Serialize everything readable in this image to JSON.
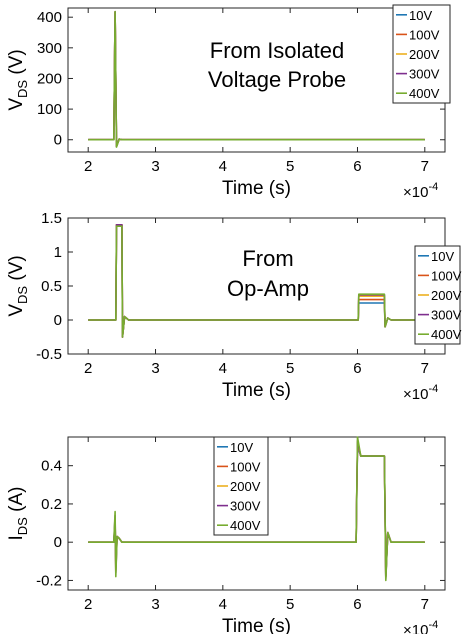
{
  "chart_data": [
    {
      "type": "line",
      "title": "",
      "annotation": [
        "From Isolated",
        "Voltage Probe"
      ],
      "xlabel": "Time (s)",
      "x_multiplier": "×10",
      "x_exponent": "-4",
      "ylabel_main": "V",
      "ylabel_sub": "DS",
      "ylabel_unit": " (V)",
      "xlim": [
        1.7,
        7.3
      ],
      "ylim": [
        -40,
        430
      ],
      "xticks": [
        "2",
        "3",
        "4",
        "5",
        "6",
        "7"
      ],
      "yticks": [
        "0",
        "100",
        "200",
        "300",
        "400"
      ],
      "legend_position": "top-right",
      "series": [
        {
          "name": "10V",
          "color": "#1f77b4",
          "points": [
            [
              2.0,
              0
            ],
            [
              2.38,
              0
            ],
            [
              2.4,
              418
            ],
            [
              2.42,
              -20
            ],
            [
              2.46,
              2
            ],
            [
              2.5,
              0
            ],
            [
              7.0,
              0
            ]
          ]
        },
        {
          "name": "100V",
          "color": "#d95319",
          "points": [
            [
              2.0,
              0
            ],
            [
              2.38,
              0
            ],
            [
              2.4,
              418
            ],
            [
              2.42,
              -22
            ],
            [
              2.46,
              2
            ],
            [
              2.5,
              0
            ],
            [
              7.0,
              0
            ]
          ]
        },
        {
          "name": "200V",
          "color": "#edb120",
          "points": [
            [
              2.0,
              0
            ],
            [
              2.38,
              0
            ],
            [
              2.4,
              418
            ],
            [
              2.42,
              -22
            ],
            [
              2.46,
              2
            ],
            [
              2.5,
              0
            ],
            [
              7.0,
              0
            ]
          ]
        },
        {
          "name": "300V",
          "color": "#7e2f8e",
          "points": [
            [
              2.0,
              0
            ],
            [
              2.38,
              0
            ],
            [
              2.4,
              418
            ],
            [
              2.42,
              -22
            ],
            [
              2.46,
              2
            ],
            [
              2.5,
              0
            ],
            [
              7.0,
              0
            ]
          ]
        },
        {
          "name": "400V",
          "color": "#77ac30",
          "points": [
            [
              2.0,
              0
            ],
            [
              2.38,
              0
            ],
            [
              2.4,
              418
            ],
            [
              2.42,
              -24
            ],
            [
              2.46,
              2
            ],
            [
              2.5,
              0
            ],
            [
              7.0,
              0
            ]
          ]
        }
      ]
    },
    {
      "type": "line",
      "title": "",
      "annotation": [
        "From",
        "Op-Amp"
      ],
      "xlabel": "Time (s)",
      "x_multiplier": "×10",
      "x_exponent": "-4",
      "ylabel_main": "V",
      "ylabel_sub": "DS",
      "ylabel_unit": " (V)",
      "xlim": [
        1.7,
        7.3
      ],
      "ylim": [
        -0.5,
        1.5
      ],
      "xticks": [
        "2",
        "3",
        "4",
        "5",
        "6",
        "7"
      ],
      "yticks": [
        "-0.5",
        "0",
        "0.5",
        "1",
        "1.5"
      ],
      "legend_position": "right",
      "series": [
        {
          "name": "10V",
          "color": "#1f77b4",
          "points": [
            [
              2.0,
              0
            ],
            [
              2.41,
              0
            ],
            [
              2.42,
              1.4
            ],
            [
              2.5,
              1.4
            ],
            [
              2.51,
              -0.25
            ],
            [
              2.54,
              0.05
            ],
            [
              2.6,
              0
            ],
            [
              6.01,
              0
            ],
            [
              6.02,
              0.25
            ],
            [
              6.4,
              0.25
            ],
            [
              6.41,
              -0.1
            ],
            [
              6.45,
              0.03
            ],
            [
              6.5,
              0
            ],
            [
              7.0,
              0
            ]
          ]
        },
        {
          "name": "100V",
          "color": "#d95319",
          "points": [
            [
              2.0,
              0
            ],
            [
              2.41,
              0
            ],
            [
              2.42,
              1.4
            ],
            [
              2.5,
              1.4
            ],
            [
              2.51,
              -0.25
            ],
            [
              2.54,
              0.05
            ],
            [
              2.6,
              0
            ],
            [
              6.01,
              0
            ],
            [
              6.02,
              0.3
            ],
            [
              6.4,
              0.3
            ],
            [
              6.41,
              -0.1
            ],
            [
              6.45,
              0.03
            ],
            [
              6.5,
              0
            ],
            [
              7.0,
              0
            ]
          ]
        },
        {
          "name": "200V",
          "color": "#edb120",
          "points": [
            [
              2.0,
              0
            ],
            [
              2.41,
              0
            ],
            [
              2.42,
              1.4
            ],
            [
              2.5,
              1.4
            ],
            [
              2.51,
              -0.25
            ],
            [
              2.54,
              0.05
            ],
            [
              2.6,
              0
            ],
            [
              6.01,
              0
            ],
            [
              6.02,
              0.35
            ],
            [
              6.4,
              0.35
            ],
            [
              6.41,
              -0.1
            ],
            [
              6.45,
              0.03
            ],
            [
              6.5,
              0
            ],
            [
              7.0,
              0
            ]
          ]
        },
        {
          "name": "300V",
          "color": "#7e2f8e",
          "points": [
            [
              2.0,
              0
            ],
            [
              2.41,
              0
            ],
            [
              2.42,
              1.4
            ],
            [
              2.5,
              1.4
            ],
            [
              2.51,
              -0.25
            ],
            [
              2.54,
              0.05
            ],
            [
              2.6,
              0
            ],
            [
              6.01,
              0
            ],
            [
              6.02,
              0.37
            ],
            [
              6.4,
              0.37
            ],
            [
              6.41,
              -0.1
            ],
            [
              6.45,
              0.03
            ],
            [
              6.5,
              0
            ],
            [
              7.0,
              0
            ]
          ]
        },
        {
          "name": "400V",
          "color": "#77ac30",
          "points": [
            [
              2.0,
              0
            ],
            [
              2.41,
              0
            ],
            [
              2.42,
              1.38
            ],
            [
              2.5,
              1.38
            ],
            [
              2.51,
              -0.25
            ],
            [
              2.54,
              0.05
            ],
            [
              2.6,
              0
            ],
            [
              6.01,
              0
            ],
            [
              6.02,
              0.38
            ],
            [
              6.4,
              0.38
            ],
            [
              6.41,
              -0.1
            ],
            [
              6.45,
              0.03
            ],
            [
              6.5,
              0
            ],
            [
              7.0,
              0
            ]
          ]
        }
      ]
    },
    {
      "type": "line",
      "title": "",
      "xlabel": "Time (s)",
      "x_multiplier": "×10",
      "x_exponent": "-4",
      "ylabel_main": "I",
      "ylabel_sub": "DS",
      "ylabel_unit": " (A)",
      "xlim": [
        1.7,
        7.3
      ],
      "ylim": [
        -0.25,
        0.55
      ],
      "xticks": [
        "2",
        "3",
        "4",
        "5",
        "6",
        "7"
      ],
      "yticks": [
        "-0.2",
        "0",
        "0.2",
        "0.4"
      ],
      "legend_position": "top-center",
      "series": [
        {
          "name": "10V",
          "color": "#1f77b4",
          "points": [
            [
              2.0,
              0
            ],
            [
              2.38,
              0
            ],
            [
              2.4,
              0.1
            ],
            [
              2.41,
              -0.1
            ],
            [
              2.43,
              0.03
            ],
            [
              2.46,
              0.02
            ],
            [
              2.5,
              0
            ],
            [
              5.98,
              0
            ],
            [
              6.0,
              0.5
            ],
            [
              6.05,
              0.45
            ],
            [
              6.4,
              0.45
            ],
            [
              6.42,
              -0.18
            ],
            [
              6.45,
              0.05
            ],
            [
              6.5,
              0
            ],
            [
              7.0,
              0
            ]
          ]
        },
        {
          "name": "100V",
          "color": "#d95319",
          "points": [
            [
              2.0,
              0
            ],
            [
              2.38,
              0
            ],
            [
              2.4,
              0.1
            ],
            [
              2.41,
              -0.12
            ],
            [
              2.43,
              0.03
            ],
            [
              2.46,
              0.02
            ],
            [
              2.5,
              0
            ],
            [
              5.98,
              0
            ],
            [
              6.0,
              0.52
            ],
            [
              6.05,
              0.45
            ],
            [
              6.4,
              0.45
            ],
            [
              6.42,
              -0.18
            ],
            [
              6.45,
              0.05
            ],
            [
              6.5,
              0
            ],
            [
              7.0,
              0
            ]
          ]
        },
        {
          "name": "200V",
          "color": "#edb120",
          "points": [
            [
              2.0,
              0
            ],
            [
              2.38,
              0
            ],
            [
              2.4,
              0.12
            ],
            [
              2.41,
              -0.15
            ],
            [
              2.43,
              0.03
            ],
            [
              2.46,
              0.02
            ],
            [
              2.5,
              0
            ],
            [
              5.98,
              0
            ],
            [
              6.0,
              0.52
            ],
            [
              6.05,
              0.45
            ],
            [
              6.4,
              0.45
            ],
            [
              6.42,
              -0.18
            ],
            [
              6.45,
              0.05
            ],
            [
              6.5,
              0
            ],
            [
              7.0,
              0
            ]
          ]
        },
        {
          "name": "300V",
          "color": "#7e2f8e",
          "points": [
            [
              2.0,
              0
            ],
            [
              2.38,
              0
            ],
            [
              2.4,
              0.14
            ],
            [
              2.41,
              -0.16
            ],
            [
              2.43,
              0.03
            ],
            [
              2.46,
              0.02
            ],
            [
              2.5,
              0
            ],
            [
              5.98,
              0
            ],
            [
              6.0,
              0.53
            ],
            [
              6.05,
              0.45
            ],
            [
              6.4,
              0.45
            ],
            [
              6.42,
              -0.19
            ],
            [
              6.45,
              0.05
            ],
            [
              6.5,
              0
            ],
            [
              7.0,
              0
            ]
          ]
        },
        {
          "name": "400V",
          "color": "#77ac30",
          "points": [
            [
              2.0,
              0
            ],
            [
              2.38,
              0
            ],
            [
              2.4,
              0.16
            ],
            [
              2.41,
              -0.18
            ],
            [
              2.43,
              0.03
            ],
            [
              2.46,
              0.02
            ],
            [
              2.5,
              0
            ],
            [
              5.98,
              0
            ],
            [
              6.0,
              0.55
            ],
            [
              6.05,
              0.45
            ],
            [
              6.4,
              0.45
            ],
            [
              6.42,
              -0.2
            ],
            [
              6.45,
              0.05
            ],
            [
              6.5,
              0
            ],
            [
              7.0,
              0
            ]
          ]
        }
      ]
    }
  ]
}
